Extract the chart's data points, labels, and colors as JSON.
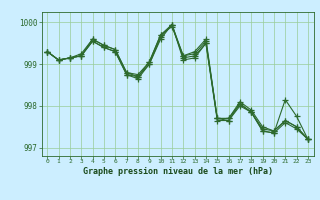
{
  "xlabel": "Graphe pression niveau de la mer (hPa)",
  "x": [
    0,
    1,
    2,
    3,
    4,
    5,
    6,
    7,
    8,
    9,
    10,
    11,
    12,
    13,
    14,
    15,
    16,
    17,
    18,
    19,
    20,
    21,
    22,
    23
  ],
  "lines": [
    [
      999.3,
      999.1,
      999.15,
      999.2,
      999.55,
      999.4,
      999.3,
      998.75,
      998.65,
      999.0,
      999.6,
      999.95,
      999.1,
      999.15,
      999.5,
      997.65,
      997.65,
      998.0,
      997.85,
      997.4,
      997.35,
      997.6,
      997.45,
      997.2
    ],
    [
      999.3,
      999.1,
      999.15,
      999.2,
      999.55,
      999.4,
      999.3,
      998.75,
      998.7,
      999.05,
      999.7,
      999.9,
      999.2,
      999.3,
      999.6,
      997.7,
      997.7,
      998.1,
      997.9,
      997.5,
      997.4,
      997.65,
      997.5,
      997.2
    ],
    [
      999.3,
      999.1,
      999.15,
      999.2,
      999.6,
      999.45,
      999.35,
      998.8,
      998.7,
      999.0,
      999.65,
      999.95,
      999.15,
      999.2,
      999.5,
      997.7,
      997.7,
      998.05,
      997.85,
      997.4,
      997.35,
      998.15,
      997.75,
      997.2
    ],
    [
      999.3,
      999.1,
      999.15,
      999.25,
      999.6,
      999.45,
      999.35,
      998.8,
      998.75,
      999.05,
      999.7,
      999.95,
      999.2,
      999.25,
      999.55,
      997.7,
      997.65,
      998.05,
      997.85,
      997.45,
      997.4,
      997.65,
      997.5,
      997.2
    ]
  ],
  "line_color": "#2d6a2d",
  "bg_color": "#cceeff",
  "grid_color": "#99cc99",
  "tick_color": "#2d6a2d",
  "label_color": "#1a4a1a",
  "ylim": [
    996.8,
    1000.25
  ],
  "yticks": [
    997,
    998,
    999,
    1000
  ],
  "marker": "+",
  "markersize": 4,
  "linewidth": 0.8
}
